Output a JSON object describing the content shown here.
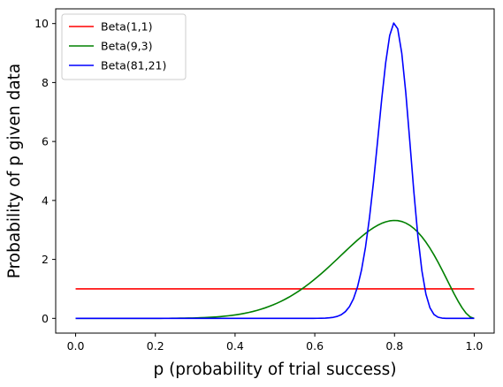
{
  "chart_data": {
    "type": "line",
    "title": "",
    "xlabel": "p (probability of trial success)",
    "ylabel": "Probability of p given data",
    "xlim": [
      -0.05,
      1.05
    ],
    "ylim": [
      -0.5,
      10.5
    ],
    "xticks": [
      0.0,
      0.2,
      0.4,
      0.6,
      0.8,
      1.0
    ],
    "xtick_labels": [
      "0.0",
      "0.2",
      "0.4",
      "0.6",
      "0.8",
      "1.0"
    ],
    "yticks": [
      0,
      2,
      4,
      6,
      8,
      10
    ],
    "ytick_labels": [
      "0",
      "2",
      "4",
      "6",
      "8",
      "10"
    ],
    "grid": false,
    "legend_position": "top-left",
    "samples": 100,
    "series": [
      {
        "name": "Beta(1,1)",
        "alpha": 1,
        "beta": 1,
        "color": "#ff0000"
      },
      {
        "name": "Beta(9,3)",
        "alpha": 9,
        "beta": 3,
        "color": "#008000"
      },
      {
        "name": "Beta(81,21)",
        "alpha": 81,
        "beta": 21,
        "color": "#0000ff"
      }
    ]
  }
}
